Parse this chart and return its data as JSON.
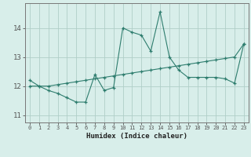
{
  "xlabel": "Humidex (Indice chaleur)",
  "x_values": [
    0,
    1,
    2,
    3,
    4,
    5,
    6,
    7,
    8,
    9,
    10,
    11,
    12,
    13,
    14,
    15,
    16,
    17,
    18,
    19,
    20,
    21,
    22,
    23
  ],
  "line1_y": [
    12.2,
    12.0,
    11.85,
    11.75,
    11.6,
    11.45,
    11.45,
    12.4,
    11.85,
    11.95,
    14.0,
    13.85,
    13.75,
    13.2,
    14.55,
    13.0,
    12.55,
    12.3,
    12.3,
    12.3,
    12.3,
    12.25,
    12.1,
    13.45
  ],
  "line2_y": [
    12.0,
    12.0,
    12.0,
    12.05,
    12.1,
    12.15,
    12.2,
    12.25,
    12.3,
    12.35,
    12.4,
    12.45,
    12.5,
    12.55,
    12.6,
    12.65,
    12.7,
    12.75,
    12.8,
    12.85,
    12.9,
    12.95,
    13.0,
    13.45
  ],
  "line_color": "#2e7d6e",
  "bg_color": "#d8eeea",
  "grid_color": "#b0cec8",
  "ylim": [
    10.75,
    14.85
  ],
  "yticks": [
    11,
    12,
    13,
    14
  ],
  "xlim": [
    -0.5,
    23.5
  ]
}
